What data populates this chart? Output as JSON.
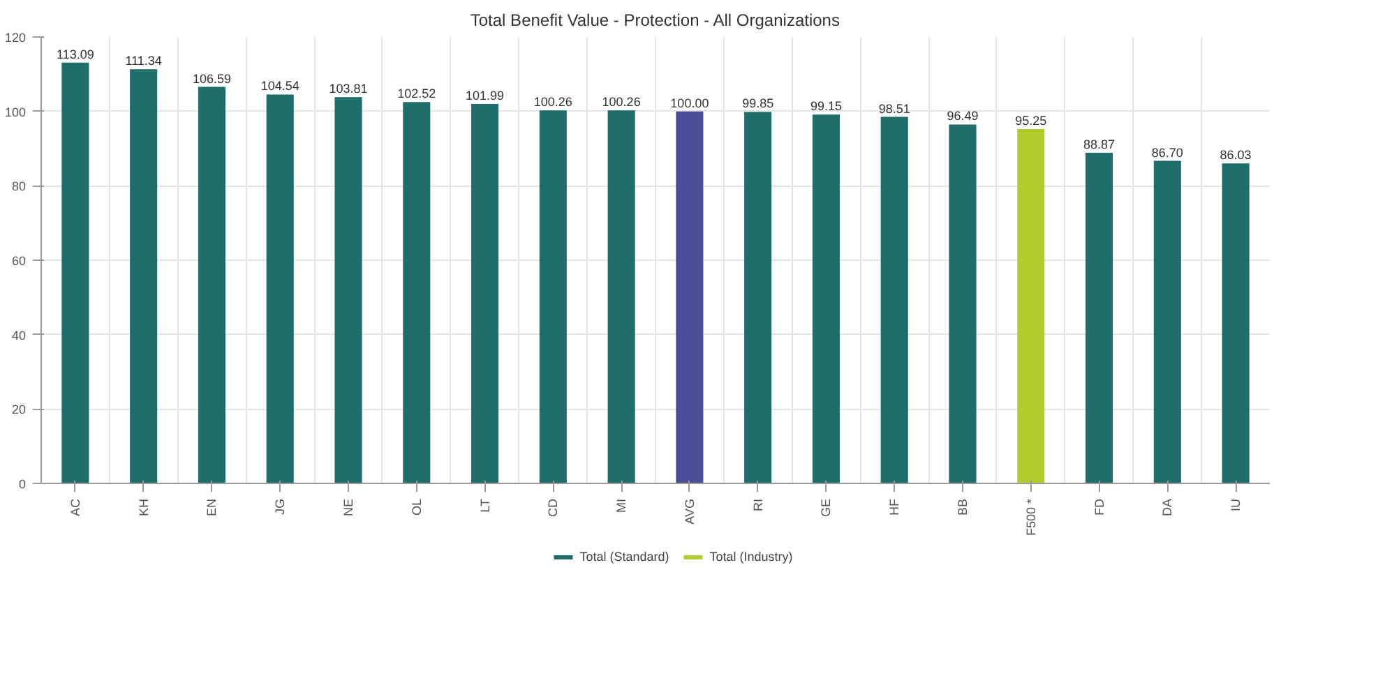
{
  "chart_data": {
    "type": "bar",
    "title": "Total Benefit Value - Protection - All Organizations",
    "categories": [
      "AC",
      "KH",
      "EN",
      "JG",
      "NE",
      "OL",
      "LT",
      "CD",
      "MI",
      "AVG",
      "RI",
      "GE",
      "HF",
      "BB",
      "F500 *",
      "FD",
      "DA",
      "IU"
    ],
    "series": [
      {
        "name": "Total (Standard)",
        "color": "#1e6e6a",
        "colors": [
          null,
          null,
          null,
          null,
          null,
          null,
          null,
          null,
          null,
          "#4b4f96",
          null,
          null,
          null,
          null,
          null,
          null,
          null,
          null
        ],
        "values": [
          113.09,
          111.34,
          106.59,
          104.54,
          103.81,
          102.52,
          101.99,
          100.26,
          100.26,
          100.0,
          99.85,
          99.15,
          98.51,
          96.49,
          null,
          88.87,
          86.7,
          86.03
        ],
        "value_labels": [
          "113.09",
          "111.34",
          "106.59",
          "104.54",
          "103.81",
          "102.52",
          "101.99",
          "100.26",
          "100.26",
          "100.00",
          "99.85",
          "99.15",
          "98.51",
          "96.49",
          null,
          "88.87",
          "86.70",
          "86.03"
        ]
      },
      {
        "name": "Total (Industry)",
        "color": "#b5cc2e",
        "values": [
          null,
          null,
          null,
          null,
          null,
          null,
          null,
          null,
          null,
          null,
          null,
          null,
          null,
          null,
          95.25,
          null,
          null,
          null
        ],
        "value_labels": [
          null,
          null,
          null,
          null,
          null,
          null,
          null,
          null,
          null,
          null,
          null,
          null,
          null,
          null,
          "95.25",
          null,
          null,
          null
        ]
      }
    ],
    "ylim": [
      0,
      120
    ],
    "yticks": [
      0,
      20,
      40,
      60,
      80,
      100,
      120
    ],
    "grid": true,
    "legend": "bottom"
  }
}
